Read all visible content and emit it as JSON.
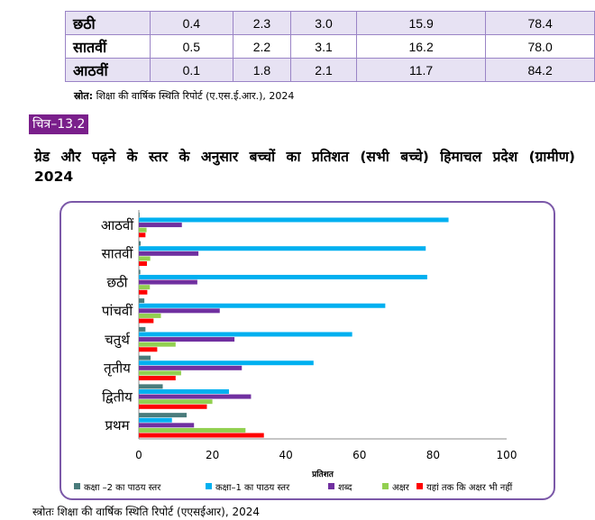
{
  "table": {
    "rows": [
      {
        "grade": "छठी",
        "values": [
          "0.4",
          "2.3",
          "3.0",
          "15.9",
          "78.4"
        ]
      },
      {
        "grade": "सातवीं",
        "values": [
          "0.5",
          "2.2",
          "3.1",
          "16.2",
          "78.0"
        ]
      },
      {
        "grade": "आठवीं",
        "values": [
          "0.1",
          "1.8",
          "2.1",
          "11.7",
          "84.2"
        ]
      }
    ]
  },
  "source_top": {
    "label": "स्रोत:",
    "text": " शिक्षा की वार्षिक स्थिति रिपोर्ट (ए.एस.ई.आर.), 2024"
  },
  "figure_badge": "चित्र–13.2",
  "heading_line1": "ग्रेड और पढ़ने के स्तर के अनुसार बच्चों का प्रतिशत (सभी बच्चे) हिमाचल प्रदेश (ग्रामीण)",
  "heading_line2": "2024",
  "source_bottom": "स्त्रोतः शिक्षा की वार्षिक स्थिति रिपोर्ट (एएसईआर), 2024",
  "chart_data": {
    "type": "bar",
    "orientation": "horizontal",
    "xlabel": "प्रतिशत",
    "xlim": [
      0,
      100
    ],
    "xticks": [
      "0",
      "20",
      "40",
      "60",
      "80",
      "100"
    ],
    "categories": [
      "आठवीं",
      "सातवीं",
      "छठी",
      "पांचवीं",
      "चतुर्थ",
      "तृतीय",
      "द्वितीय",
      "प्रथम"
    ],
    "series": [
      {
        "name": "कक्षा –2 का पाठय स्तर",
        "color": "#4a7c7c",
        "values": [
          0.1,
          0.5,
          0.4,
          1.5,
          1.8,
          3.2,
          6.5,
          13
        ]
      },
      {
        "name": "कक्षा–1 का पाठय स्तर",
        "color": "#00b0f0",
        "values": [
          84.2,
          78.0,
          78.4,
          67,
          58,
          47.5,
          24.5,
          9
        ]
      },
      {
        "name": "शब्द",
        "color": "#7030a0",
        "values": [
          11.7,
          16.2,
          15.9,
          22,
          26,
          28,
          30.5,
          15
        ]
      },
      {
        "name": "अक्षर",
        "color": "#92d050",
        "values": [
          2.1,
          3.1,
          3.0,
          6,
          10,
          11.5,
          20,
          29
        ]
      },
      {
        "name": "यहां तक कि अक्षर भी नहीं",
        "color": "#ff0000",
        "values": [
          1.8,
          2.2,
          2.3,
          4,
          5,
          10,
          18.5,
          34
        ]
      }
    ],
    "legend_position": "bottom",
    "grid": false
  }
}
